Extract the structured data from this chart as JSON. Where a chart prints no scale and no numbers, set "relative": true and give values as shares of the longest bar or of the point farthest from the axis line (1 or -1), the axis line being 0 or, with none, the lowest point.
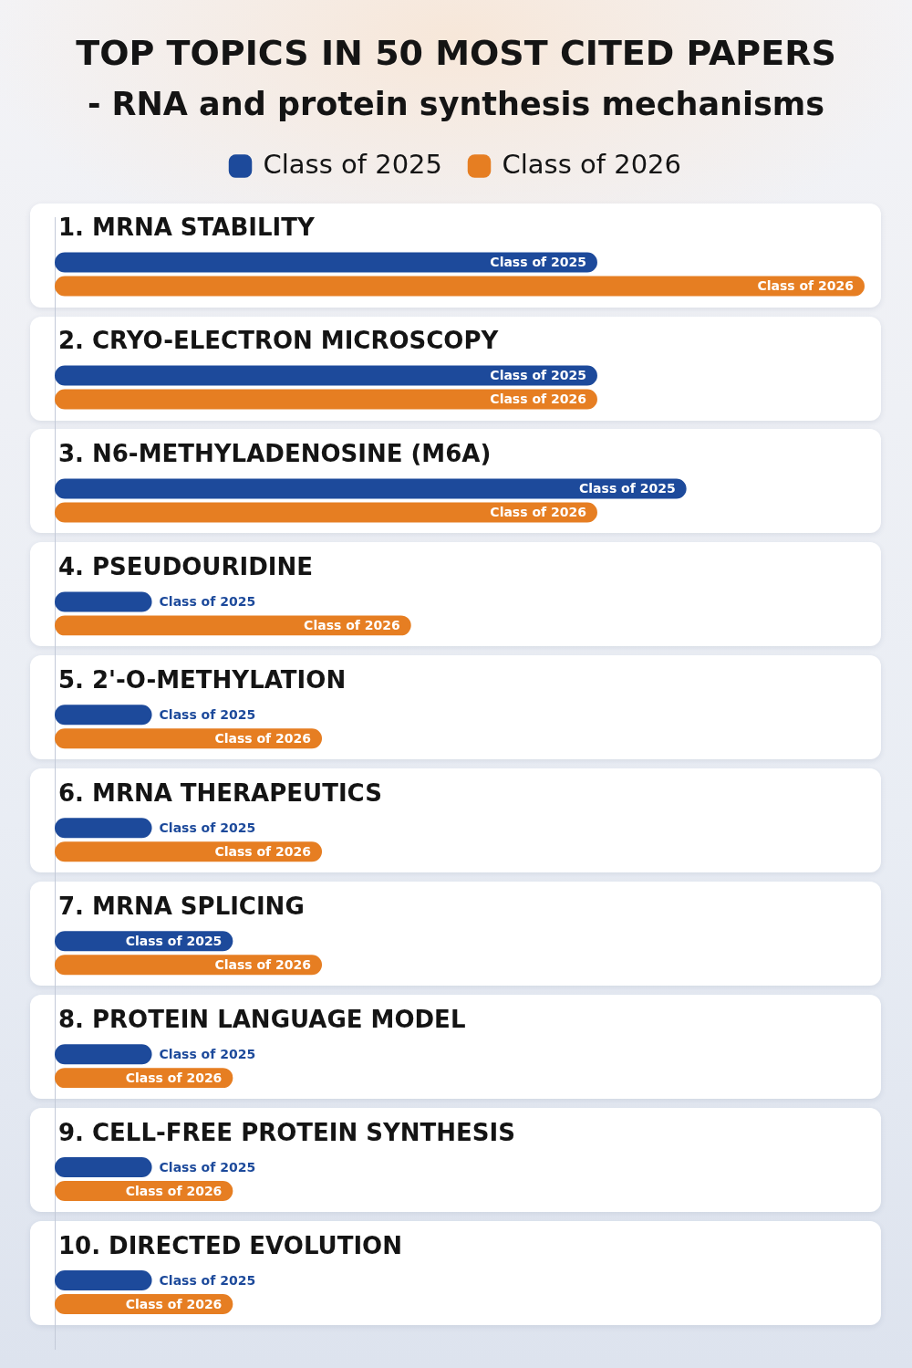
{
  "chart_data": {
    "type": "bar",
    "orientation": "horizontal",
    "relative": true,
    "title": "TOP TOPICS IN 50 MOST CITED PAPERS",
    "subtitle": "- RNA and protein synthesis mechanisms",
    "legend": "top",
    "categories": [
      "1. MRNA STABILITY",
      "2. CRYO-ELECTRON MICROSCOPY",
      "3. N6-METHYLADENOSINE (M6A)",
      "4. PSEUDOURIDINE",
      "5. 2'-O-METHYLATION",
      "6. MRNA THERAPEUTICS",
      "7. MRNA SPLICING",
      "8. PROTEIN LANGUAGE MODEL",
      "9. CELL-FREE PROTEIN SYNTHESIS",
      "10. DIRECTED EVOLUTION"
    ],
    "series": [
      {
        "name": "Class of 2025",
        "color": "#1d4a9b",
        "values": [
          0.67,
          0.67,
          0.78,
          0.12,
          0.12,
          0.12,
          0.22,
          0.12,
          0.12,
          0.12
        ]
      },
      {
        "name": "Class of 2026",
        "color": "#e67e22",
        "values": [
          1,
          0.67,
          0.67,
          0.44,
          0.33,
          0.33,
          0.33,
          0.22,
          0.22,
          0.22
        ]
      }
    ]
  }
}
